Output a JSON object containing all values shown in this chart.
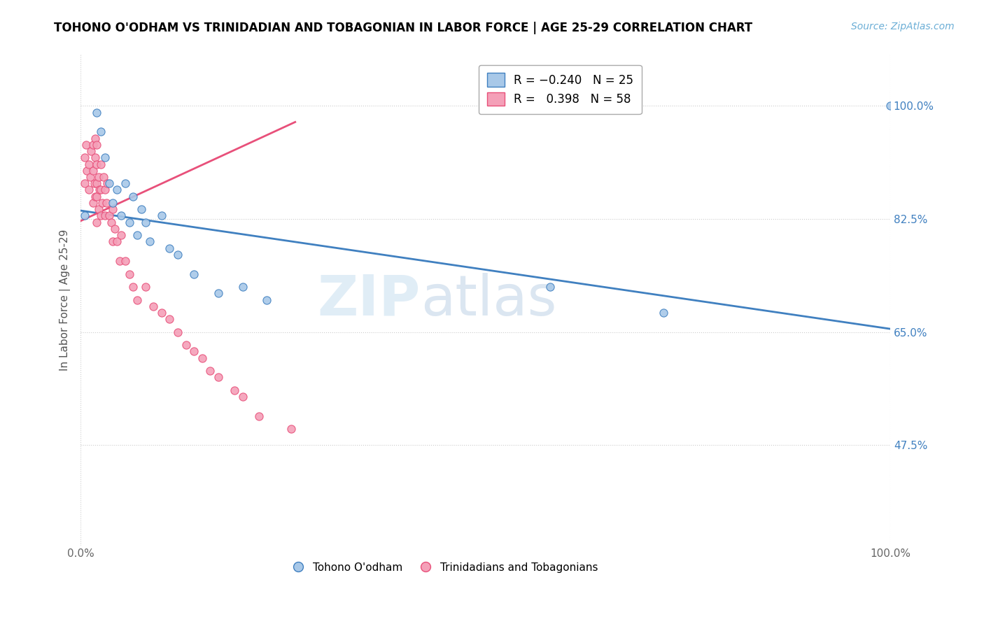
{
  "title": "TOHONO O'ODHAM VS TRINIDADIAN AND TOBAGONIAN IN LABOR FORCE | AGE 25-29 CORRELATION CHART",
  "source": "Source: ZipAtlas.com",
  "ylabel": "In Labor Force | Age 25-29",
  "ytick_labels": [
    "47.5%",
    "65.0%",
    "82.5%",
    "100.0%"
  ],
  "ytick_values": [
    0.475,
    0.65,
    0.825,
    1.0
  ],
  "xlim": [
    0.0,
    1.0
  ],
  "ylim": [
    0.32,
    1.08
  ],
  "color_blue": "#a8c8e8",
  "color_pink": "#f4a0b8",
  "color_blue_line": "#4080c0",
  "color_pink_line": "#e8507a",
  "watermark_zip": "ZIP",
  "watermark_atlas": "atlas",
  "blue_scatter_x": [
    0.005,
    0.02,
    0.025,
    0.03,
    0.035,
    0.04,
    0.045,
    0.05,
    0.055,
    0.06,
    0.065,
    0.07,
    0.075,
    0.08,
    0.085,
    0.1,
    0.11,
    0.12,
    0.14,
    0.17,
    0.2,
    0.23,
    0.58,
    0.72,
    1.0
  ],
  "blue_scatter_y": [
    0.83,
    0.99,
    0.96,
    0.92,
    0.88,
    0.85,
    0.87,
    0.83,
    0.88,
    0.82,
    0.86,
    0.8,
    0.84,
    0.82,
    0.79,
    0.83,
    0.78,
    0.77,
    0.74,
    0.71,
    0.72,
    0.7,
    0.72,
    0.68,
    1.0
  ],
  "pink_scatter_x": [
    0.005,
    0.005,
    0.007,
    0.008,
    0.01,
    0.01,
    0.012,
    0.013,
    0.015,
    0.015,
    0.015,
    0.017,
    0.018,
    0.018,
    0.018,
    0.02,
    0.02,
    0.02,
    0.02,
    0.02,
    0.022,
    0.022,
    0.023,
    0.025,
    0.025,
    0.025,
    0.027,
    0.028,
    0.03,
    0.03,
    0.032,
    0.033,
    0.035,
    0.038,
    0.04,
    0.04,
    0.042,
    0.045,
    0.048,
    0.05,
    0.055,
    0.06,
    0.065,
    0.07,
    0.08,
    0.09,
    0.1,
    0.11,
    0.12,
    0.13,
    0.14,
    0.15,
    0.16,
    0.17,
    0.19,
    0.2,
    0.22,
    0.26
  ],
  "pink_scatter_y": [
    0.88,
    0.92,
    0.94,
    0.9,
    0.87,
    0.91,
    0.89,
    0.93,
    0.85,
    0.9,
    0.94,
    0.88,
    0.86,
    0.92,
    0.95,
    0.82,
    0.86,
    0.88,
    0.91,
    0.94,
    0.84,
    0.89,
    0.87,
    0.83,
    0.87,
    0.91,
    0.85,
    0.89,
    0.83,
    0.87,
    0.85,
    0.88,
    0.83,
    0.82,
    0.79,
    0.84,
    0.81,
    0.79,
    0.76,
    0.8,
    0.76,
    0.74,
    0.72,
    0.7,
    0.72,
    0.69,
    0.68,
    0.67,
    0.65,
    0.63,
    0.62,
    0.61,
    0.59,
    0.58,
    0.56,
    0.55,
    0.52,
    0.5
  ],
  "blue_line_x": [
    0.0,
    1.0
  ],
  "blue_line_y": [
    0.838,
    0.655
  ],
  "pink_line_x": [
    0.0,
    0.265
  ],
  "pink_line_y": [
    0.822,
    0.975
  ]
}
